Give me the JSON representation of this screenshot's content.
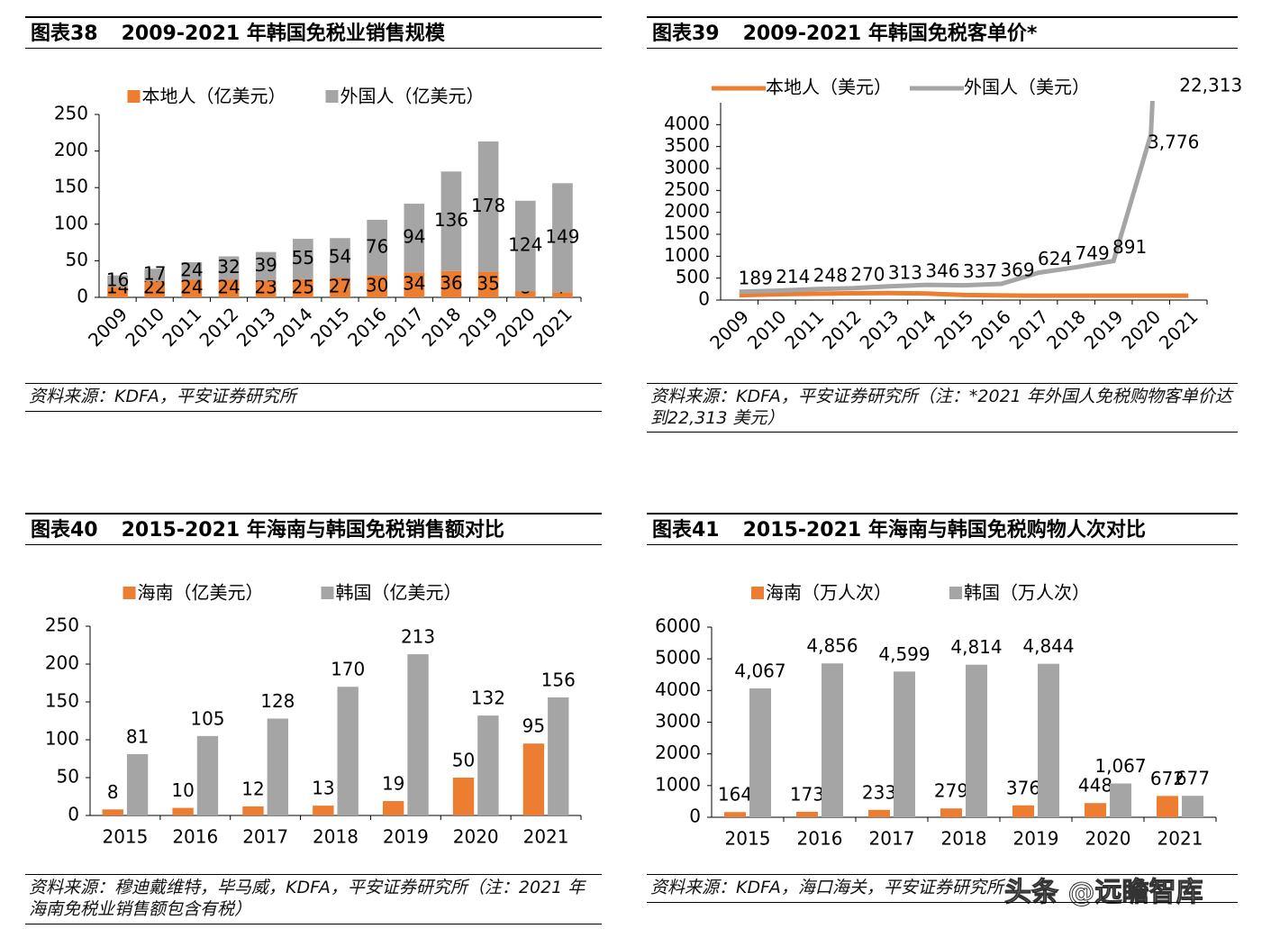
{
  "chart_data": [
    {
      "type": "bar",
      "stacked": true,
      "figure": "图表38",
      "title": "2009-2021 年韩国免税业销售规模",
      "categories": [
        "2009",
        "2010",
        "2011",
        "2012",
        "2013",
        "2014",
        "2015",
        "2016",
        "2017",
        "2018",
        "2019",
        "2020",
        "2021"
      ],
      "series": [
        {
          "name": "本地人（亿美元）",
          "color": "#ED7D31",
          "values": [
            14,
            22,
            24,
            24,
            23,
            25,
            27,
            30,
            34,
            36,
            35,
            8,
            7
          ]
        },
        {
          "name": "外国人（亿美元）",
          "color": "#A5A5A5",
          "values": [
            16,
            17,
            24,
            32,
            39,
            55,
            54,
            76,
            94,
            136,
            178,
            124,
            149
          ]
        }
      ],
      "ylim": [
        0,
        250
      ],
      "yticks": [
        0,
        50,
        100,
        150,
        200,
        250
      ],
      "source": "资料来源：KDFA，平安证券研究所"
    },
    {
      "type": "line",
      "figure": "图表39",
      "title": "2009-2021 年韩国免税客单价*",
      "categories": [
        "2009",
        "2010",
        "2011",
        "2012",
        "2013",
        "2014",
        "2015",
        "2016",
        "2017",
        "2018",
        "2019",
        "2020",
        "2021"
      ],
      "series": [
        {
          "name": "本地人（美元）",
          "color": "#ED7D31",
          "values": [
            110,
            130,
            145,
            155,
            160,
            150,
            115,
            105,
            100,
            100,
            100,
            100,
            100
          ]
        },
        {
          "name": "外国人（美元）",
          "color": "#A5A5A5",
          "values": [
            189,
            214,
            248,
            270,
            313,
            346,
            337,
            369,
            624,
            749,
            891,
            3776,
            22313
          ],
          "value_labels": [
            "189",
            "214",
            "248",
            "270",
            "313",
            "346",
            "337",
            "369",
            "624",
            "749",
            "891",
            "3,776",
            "22,313"
          ]
        }
      ],
      "ylim": [
        0,
        4500
      ],
      "yticks": [
        0,
        500,
        1000,
        1500,
        2000,
        2500,
        3000,
        3500,
        4000
      ],
      "source": "资料来源：KDFA，平安证券研究所（注：*2021 年外国人免税购物客单价达到22,313 美元）"
    },
    {
      "type": "bar",
      "figure": "图表40",
      "title": "2015-2021 年海南与韩国免税销售额对比",
      "categories": [
        "2015",
        "2016",
        "2017",
        "2018",
        "2019",
        "2020",
        "2021"
      ],
      "series": [
        {
          "name": "海南（亿美元）",
          "color": "#ED7D31",
          "values": [
            8,
            10,
            12,
            13,
            19,
            50,
            95
          ]
        },
        {
          "name": "韩国（亿美元）",
          "color": "#A5A5A5",
          "values": [
            81,
            105,
            128,
            170,
            213,
            132,
            156
          ]
        }
      ],
      "ylim": [
        0,
        250
      ],
      "yticks": [
        0,
        50,
        100,
        150,
        200,
        250
      ],
      "source": "资料来源：穆迪戴维特，毕马威，KDFA，平安证券研究所（注：2021 年海南免税业销售额包含有税）"
    },
    {
      "type": "bar",
      "figure": "图表41",
      "title": "2015-2021 年海南与韩国免税购物人次对比",
      "categories": [
        "2015",
        "2016",
        "2017",
        "2018",
        "2019",
        "2020",
        "2021"
      ],
      "series": [
        {
          "name": "海南（万人次）",
          "color": "#ED7D31",
          "values": [
            164,
            173,
            233,
            279,
            376,
            448,
            672
          ]
        },
        {
          "name": "韩国（万人次）",
          "color": "#A5A5A5",
          "values": [
            4067,
            4856,
            4599,
            4814,
            4844,
            1067,
            677
          ],
          "value_labels": [
            "4,067",
            "4,856",
            "4,599",
            "4,814",
            "4,844",
            "1,067",
            "677"
          ]
        }
      ],
      "ylim": [
        0,
        6000
      ],
      "yticks": [
        0,
        1000,
        2000,
        3000,
        4000,
        5000,
        6000
      ],
      "source": "资料来源：KDFA，海口海关，平安证券研究所"
    }
  ],
  "watermark": "头条 @远瞻智库"
}
